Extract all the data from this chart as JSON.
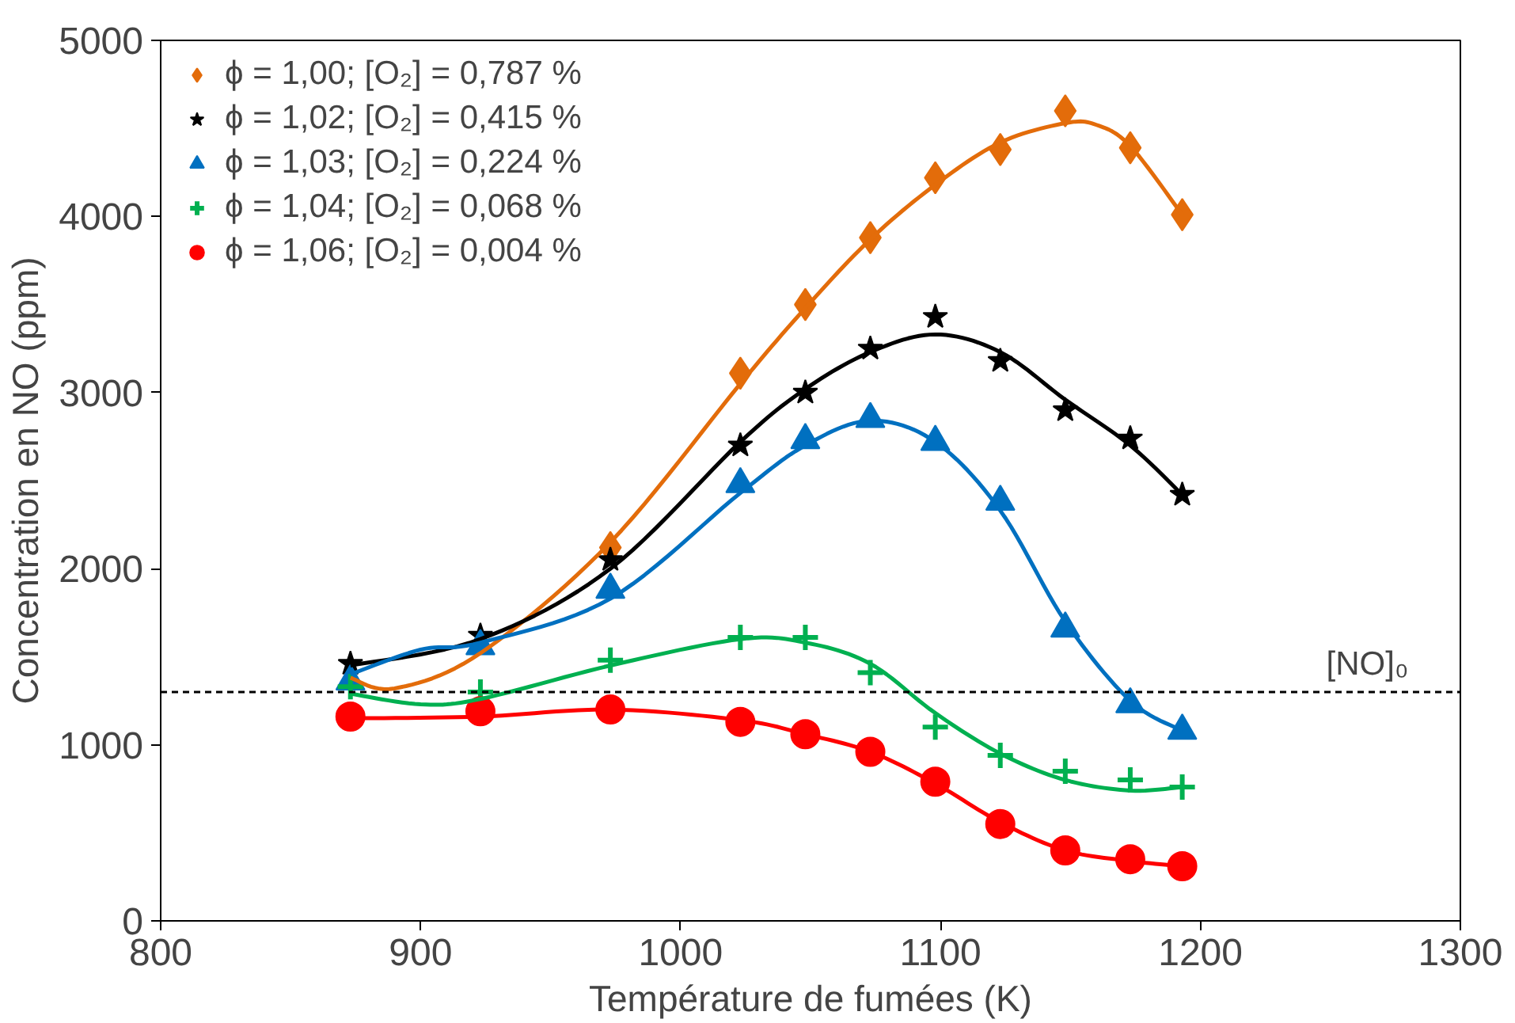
{
  "chart_data": {
    "type": "scatter",
    "xlabel": "Température de fumées (K)",
    "ylabel": "Concentration en NO (ppm)",
    "xlim": [
      800,
      1300
    ],
    "xticks": [
      800,
      900,
      1000,
      1100,
      1200,
      1300
    ],
    "ylim": [
      0,
      5000
    ],
    "yticks": [
      0,
      1000,
      2000,
      3000,
      4000,
      5000
    ],
    "grid": false,
    "legend": "top left",
    "x": [
      873,
      923,
      973,
      1023,
      1048,
      1073,
      1098,
      1123,
      1148,
      1173,
      1193
    ],
    "series": [
      {
        "name": "ϕ = 1,00; [O₂] = 0,787 %",
        "color": "#e36c0a",
        "marker": "diamond",
        "values": [
          null,
          null,
          2120,
          3110,
          3500,
          3880,
          4220,
          4380,
          4600,
          4390,
          4010
        ]
      },
      {
        "name": "ϕ = 1,02; [O₂] = 0,415 %",
        "color": "#000000",
        "marker": "star",
        "values": [
          1460,
          1620,
          2050,
          2700,
          3000,
          3250,
          3430,
          3180,
          2900,
          2740,
          2420
        ]
      },
      {
        "name": "ϕ = 1,03; [O₂] = 0,224 %",
        "color": "#0070c0",
        "marker": "triangle",
        "values": [
          1360,
          1560,
          1880,
          2480,
          2730,
          2850,
          2720,
          2380,
          1660,
          1230,
          1080
        ]
      },
      {
        "name": "ϕ = 1,04; [O₂] = 0,068 %",
        "color": "#00b050",
        "marker": "cross",
        "values": [
          1330,
          1300,
          1480,
          1610,
          1610,
          1410,
          1100,
          940,
          850,
          800,
          760
        ]
      },
      {
        "name": "ϕ = 1,06; [O₂] = 0,004 %",
        "color": "#ff0000",
        "marker": "circle",
        "values": [
          1160,
          1190,
          1200,
          1130,
          1060,
          960,
          790,
          550,
          400,
          350,
          310
        ]
      },
      {
        "type": "line",
        "color": "#e36c0a",
        "marker": "none",
        "x": [
          873,
          890,
          923,
          973,
          1023,
          1048,
          1073,
          1098,
          1123,
          1148,
          1160,
          1173,
          1193
        ],
        "values": [
          1380,
          1320,
          1520,
          2150,
          3050,
          3480,
          3870,
          4180,
          4420,
          4530,
          4520,
          4400,
          4010
        ]
      },
      {
        "type": "line",
        "color": "#000000",
        "marker": "none",
        "x": [
          873,
          923,
          973,
          1023,
          1048,
          1073,
          1098,
          1123,
          1148,
          1173,
          1193
        ],
        "values": [
          1450,
          1600,
          2000,
          2720,
          3020,
          3230,
          3330,
          3230,
          2960,
          2700,
          2420
        ]
      },
      {
        "type": "line",
        "color": "#0070c0",
        "marker": "none",
        "x": [
          873,
          900,
          923,
          973,
          1023,
          1048,
          1073,
          1098,
          1123,
          1148,
          1173,
          1193
        ],
        "values": [
          1400,
          1540,
          1580,
          1830,
          2430,
          2700,
          2840,
          2720,
          2330,
          1700,
          1250,
          1080
        ]
      },
      {
        "type": "line",
        "color": "#00b050",
        "marker": "none",
        "x": [
          873,
          900,
          923,
          973,
          1023,
          1048,
          1073,
          1098,
          1123,
          1148,
          1173,
          1193
        ],
        "values": [
          1290,
          1230,
          1260,
          1450,
          1600,
          1580,
          1460,
          1180,
          950,
          800,
          740,
          760
        ]
      },
      {
        "type": "line",
        "color": "#ff0000",
        "marker": "none",
        "x": [
          873,
          923,
          973,
          1023,
          1048,
          1073,
          1098,
          1123,
          1148,
          1173,
          1193
        ],
        "values": [
          1150,
          1160,
          1200,
          1140,
          1060,
          960,
          780,
          560,
          400,
          340,
          310
        ]
      }
    ],
    "ref_lines": [
      {
        "axis": "y",
        "value": 1300,
        "label": "[NO]₀",
        "color": "#000000",
        "line_style": "dashed"
      }
    ]
  }
}
